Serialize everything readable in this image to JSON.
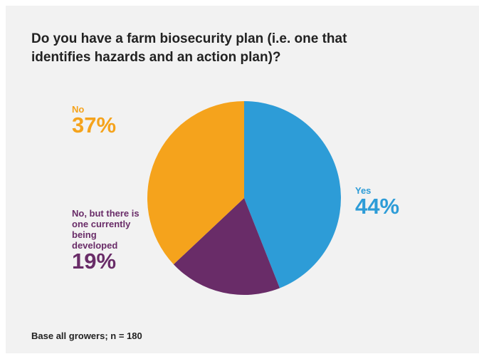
{
  "chart_data": {
    "type": "pie",
    "title": "Do you have a farm biosecurity plan (i.e. one that identifies hazards and an action plan)?",
    "slices": [
      {
        "label": "Yes",
        "value": 44,
        "display": "44%",
        "color": "#2d9cd7"
      },
      {
        "label": "No, but there is one currently being developed",
        "value": 19,
        "display": "19%",
        "color": "#692c68"
      },
      {
        "label": "No",
        "value": 37,
        "display": "37%",
        "color": "#f5a31c"
      }
    ],
    "footnote": "Base all growers; n = 180"
  }
}
